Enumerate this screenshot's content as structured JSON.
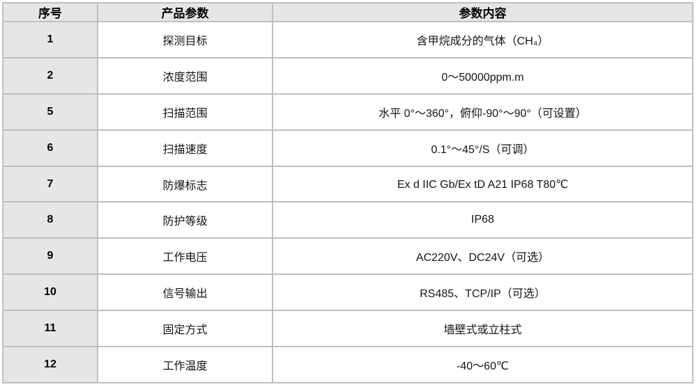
{
  "table": {
    "headers": [
      {
        "label": "序号"
      },
      {
        "label": "产品参数"
      },
      {
        "label": "参数内容"
      }
    ],
    "rows": [
      {
        "no": "1",
        "param": "探测目标",
        "value": "含甲烷成分的气体（CH₄）"
      },
      {
        "no": "2",
        "param": "浓度范围",
        "value": "0～50000ppm.m"
      },
      {
        "no": "5",
        "param": "扫描范围",
        "value": "水平 0°～360°，俯仰-90°～90°（可设置）"
      },
      {
        "no": "6",
        "param": "扫描速度",
        "value": "0.1°～45°/S（可调）"
      },
      {
        "no": "7",
        "param": "防爆标志",
        "value": "Ex d IIC Gb/Ex tD A21 IP68 T80℃"
      },
      {
        "no": "8",
        "param": "防护等级",
        "value": "IP68"
      },
      {
        "no": "9",
        "param": "工作电压",
        "value": "AC220V、DC24V（可选）"
      },
      {
        "no": "10",
        "param": "信号输出",
        "value": "RS485、TCP/IP（可选）"
      },
      {
        "no": "11",
        "param": "固定方式",
        "value": "墙壁式或立柱式"
      },
      {
        "no": "12",
        "param": "工作温度",
        "value": "-40～60℃"
      }
    ],
    "colors": {
      "header_bg": "#e7e6e6",
      "index_column_bg": "#e7e6e6",
      "cell_bg": "#ffffff",
      "border": "#bfbfbf",
      "text": "#141414"
    }
  }
}
